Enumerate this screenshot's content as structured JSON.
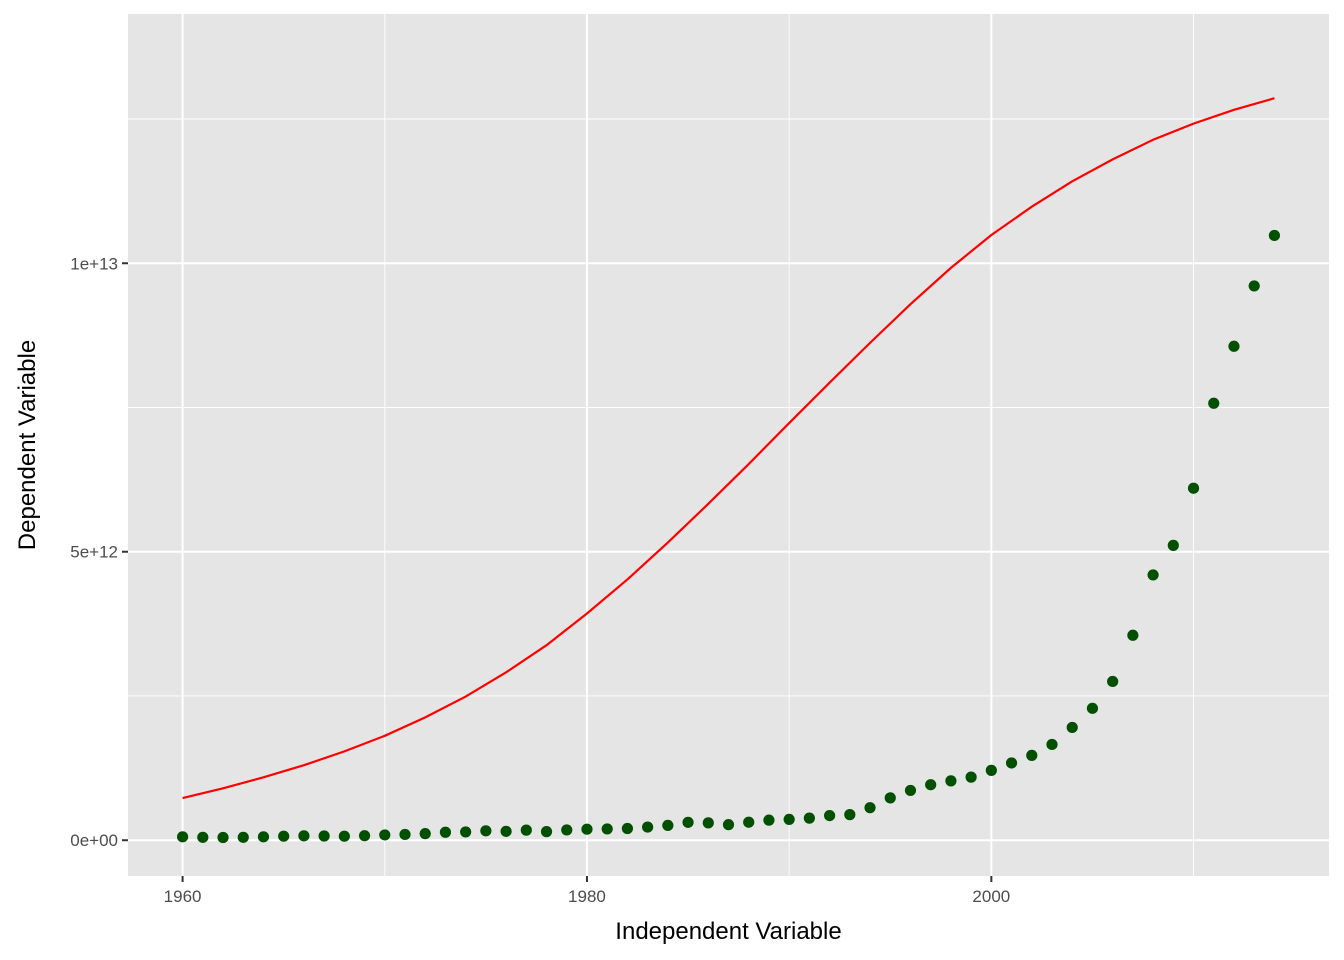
{
  "chart_data": {
    "type": "scatter",
    "title": "",
    "xlabel": "Independent Variable",
    "ylabel": "Dependent Variable",
    "xlim": [
      1957.3,
      2016.7
    ],
    "ylim": [
      -620000000000,
      14320000000000
    ],
    "grid": true,
    "legend": "none",
    "x_ticks": [
      {
        "value": 1960,
        "label": "1960"
      },
      {
        "value": 1980,
        "label": "1980"
      },
      {
        "value": 2000,
        "label": "2000"
      }
    ],
    "y_ticks": [
      {
        "value": 0,
        "label": "0e+00"
      },
      {
        "value": 5000000000000,
        "label": "5e+12"
      },
      {
        "value": 10000000000000,
        "label": "1e+13"
      }
    ],
    "x_minor_ticks": [
      1970,
      1990,
      2010
    ],
    "y_minor_ticks": [
      2500000000000,
      7500000000000,
      12500000000000
    ],
    "colors": {
      "panel_background": "#e5e5e5",
      "grid": "#ffffff",
      "points": "#005000",
      "fit_line": "#ff0000",
      "tick_label": "#4d4d4d",
      "tick_mark": "#333333",
      "axis_title": "#000000"
    },
    "series": [
      {
        "kind": "points",
        "x": [
          1960,
          1961,
          1962,
          1963,
          1964,
          1965,
          1966,
          1967,
          1968,
          1969,
          1970,
          1971,
          1972,
          1973,
          1974,
          1975,
          1976,
          1977,
          1978,
          1979,
          1980,
          1981,
          1982,
          1983,
          1984,
          1985,
          1986,
          1987,
          1988,
          1989,
          1990,
          1991,
          1992,
          1993,
          1994,
          1995,
          1996,
          1997,
          1998,
          1999,
          2000,
          2001,
          2002,
          2003,
          2004,
          2005,
          2006,
          2007,
          2008,
          2009,
          2010,
          2011,
          2012,
          2013,
          2014
        ],
        "y": [
          59000000000,
          50000000000,
          47000000000,
          50000000000,
          59000000000,
          70000000000,
          76000000000,
          73000000000,
          70000000000,
          79000000000,
          92000000000,
          100000000000,
          114000000000,
          138000000000,
          144000000000,
          163000000000,
          154000000000,
          175000000000,
          149000000000,
          178000000000,
          191000000000,
          196000000000,
          203000000000,
          228000000000,
          257000000000,
          310000000000,
          301000000000,
          270000000000,
          312000000000,
          348000000000,
          361000000000,
          383000000000,
          427000000000,
          444000000000,
          564000000000,
          734000000000,
          863000000000,
          962000000000,
          1029000000000,
          1094000000000,
          1211000000000,
          1339000000000,
          1471000000000,
          1660000000000,
          1955000000000,
          2286000000000,
          2752000000000,
          3552000000000,
          4598000000000,
          5110000000000,
          6101000000000,
          7573000000000,
          8561000000000,
          9607000000000,
          10482000000000
        ]
      },
      {
        "kind": "line",
        "x": [
          1960,
          1962,
          1964,
          1966,
          1968,
          1970,
          1972,
          1974,
          1976,
          1978,
          1980,
          1982,
          1984,
          1986,
          1988,
          1990,
          1992,
          1994,
          1996,
          1998,
          2000,
          2002,
          2004,
          2006,
          2008,
          2010,
          2012,
          2014
        ],
        "y": [
          730000000000,
          900000000000,
          1090000000000,
          1300000000000,
          1540000000000,
          1810000000000,
          2130000000000,
          2490000000000,
          2910000000000,
          3380000000000,
          3930000000000,
          4520000000000,
          5160000000000,
          5830000000000,
          6520000000000,
          7230000000000,
          7930000000000,
          8620000000000,
          9290000000000,
          9920000000000,
          10490000000000,
          10980000000000,
          11420000000000,
          11800000000000,
          12140000000000,
          12420000000000,
          12660000000000,
          12860000000000
        ]
      }
    ]
  }
}
